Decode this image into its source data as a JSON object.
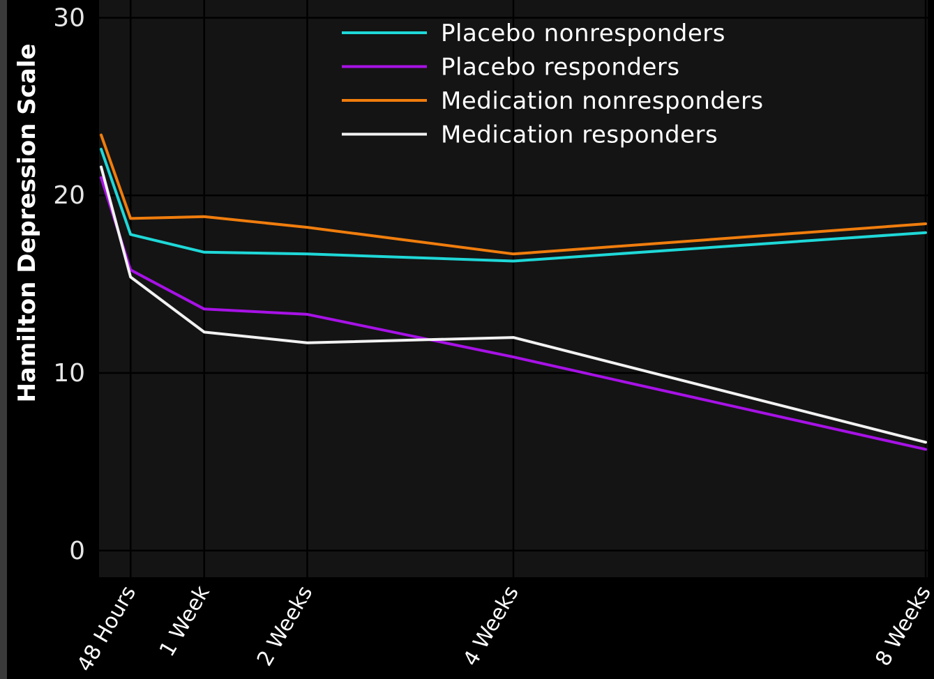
{
  "colors": {
    "page_bg": "#000000",
    "panel_bg": "#141414",
    "grid": "#000000"
  },
  "chart_data": {
    "type": "line",
    "ylabel": "Hamilton Depression Scale",
    "xlabel": "",
    "ylim": [
      -1.5,
      31
    ],
    "y_ticks": [
      0,
      10,
      20,
      30
    ],
    "x_ticks": [
      {
        "label": "48 Hours",
        "x": 2
      },
      {
        "label": "1 Week",
        "x": 7
      },
      {
        "label": "2 Weeks",
        "x": 14
      },
      {
        "label": "4 Weeks",
        "x": 28
      },
      {
        "label": "8 Weeks",
        "x": 56
      }
    ],
    "x": [
      0,
      2,
      7,
      14,
      28,
      56
    ],
    "xlim": [
      0,
      56
    ],
    "grid": true,
    "legend_position": "top-right",
    "series": [
      {
        "name": "Placebo nonresponders",
        "color": "#1fd8d8",
        "values": [
          22.6,
          17.8,
          16.8,
          16.7,
          16.3,
          17.9
        ]
      },
      {
        "name": "Placebo responders",
        "color": "#a712e6",
        "values": [
          21.0,
          15.8,
          13.6,
          13.3,
          10.9,
          5.7
        ]
      },
      {
        "name": "Medication nonresponders",
        "color": "#f07d0d",
        "values": [
          23.4,
          18.7,
          18.8,
          18.2,
          16.7,
          18.4
        ]
      },
      {
        "name": "Medication responders",
        "color": "#f2f2f2",
        "values": [
          21.6,
          15.4,
          12.3,
          11.7,
          12.0,
          6.1
        ]
      }
    ]
  }
}
